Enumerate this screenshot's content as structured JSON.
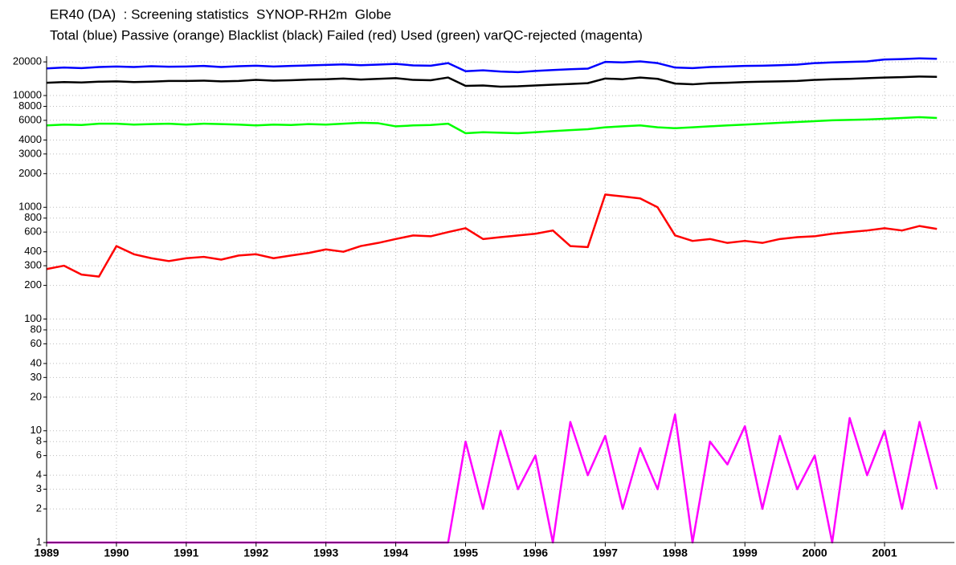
{
  "chart_data": {
    "type": "line",
    "title": "ER40 (DA)  : Screening statistics  SYNOP-RH2m  Globe",
    "subtitle": "Total (blue) Passive (orange) Blacklist (black) Failed (red) Used (green) varQC-rejected (magenta)",
    "yscale": "log",
    "grid": true,
    "xlim": [
      1989,
      2002
    ],
    "xticks": [
      1989,
      1990,
      1991,
      1992,
      1993,
      1994,
      1995,
      1996,
      1997,
      1998,
      1999,
      2000,
      2001
    ],
    "ylim": [
      1,
      22500
    ],
    "yticks": [
      1,
      2,
      3,
      4,
      6,
      8,
      10,
      20,
      30,
      40,
      60,
      80,
      100,
      200,
      300,
      400,
      600,
      800,
      1000,
      2000,
      3000,
      4000,
      6000,
      8000,
      10000,
      20000
    ],
    "x": [
      1989,
      1989.25,
      1989.5,
      1989.75,
      1990,
      1990.25,
      1990.5,
      1990.75,
      1991,
      1991.25,
      1991.5,
      1991.75,
      1992,
      1992.25,
      1992.5,
      1992.75,
      1993,
      1993.25,
      1993.5,
      1993.75,
      1994,
      1994.25,
      1994.5,
      1994.75,
      1995,
      1995.25,
      1995.5,
      1995.75,
      1996,
      1996.25,
      1996.5,
      1996.75,
      1997,
      1997.25,
      1997.5,
      1997.75,
      1998,
      1998.25,
      1998.5,
      1998.75,
      1999,
      1999.25,
      1999.5,
      1999.75,
      2000,
      2000.25,
      2000.5,
      2000.75,
      2001,
      2001.25,
      2001.5,
      2001.75
    ],
    "series": [
      {
        "color": "#ff00ff",
        "values": [
          1,
          1,
          1,
          1,
          1,
          1,
          1,
          1,
          1,
          1,
          1,
          1,
          1,
          1,
          1,
          1,
          1,
          1,
          1,
          1,
          1,
          1,
          1,
          1,
          8,
          2,
          10,
          3,
          6,
          1,
          12,
          4,
          9,
          2,
          7,
          3,
          14,
          1,
          8,
          5,
          11,
          2,
          9,
          3,
          6,
          1,
          13,
          4,
          10,
          2,
          12,
          3
        ]
      },
      {
        "color": "#ff0000",
        "values": [
          280,
          300,
          250,
          240,
          450,
          380,
          350,
          330,
          350,
          360,
          340,
          370,
          380,
          350,
          370,
          390,
          420,
          400,
          450,
          480,
          520,
          560,
          550,
          600,
          650,
          520,
          540,
          560,
          580,
          620,
          450,
          440,
          1300,
          1250,
          1200,
          1000,
          560,
          500,
          520,
          480,
          500,
          480,
          520,
          540,
          550,
          580,
          600,
          620,
          650,
          620,
          680,
          640
        ]
      },
      {
        "color": "#00ff00",
        "values": [
          5400,
          5500,
          5450,
          5600,
          5600,
          5500,
          5550,
          5600,
          5500,
          5600,
          5550,
          5500,
          5400,
          5500,
          5450,
          5550,
          5500,
          5600,
          5700,
          5650,
          5300,
          5400,
          5450,
          5600,
          4600,
          4700,
          4650,
          4600,
          4700,
          4800,
          4900,
          5000,
          5200,
          5300,
          5400,
          5200,
          5100,
          5200,
          5300,
          5400,
          5500,
          5600,
          5700,
          5800,
          5900,
          6000,
          6050,
          6100,
          6200,
          6300,
          6400,
          6300
        ]
      },
      {
        "color": "#000000",
        "values": [
          13000,
          13200,
          13100,
          13300,
          13400,
          13200,
          13300,
          13500,
          13500,
          13600,
          13400,
          13500,
          13800,
          13600,
          13700,
          13900,
          14000,
          14200,
          13900,
          14100,
          14300,
          13800,
          13700,
          14500,
          12200,
          12300,
          12000,
          12100,
          12300,
          12500,
          12700,
          12900,
          14200,
          14000,
          14500,
          14100,
          12800,
          12600,
          12900,
          13000,
          13200,
          13300,
          13400,
          13500,
          13800,
          14000,
          14100,
          14300,
          14500,
          14600,
          14800,
          14700
        ]
      },
      {
        "color": "#0000ff",
        "values": [
          17500,
          17800,
          17600,
          18000,
          18200,
          18000,
          18300,
          18100,
          18200,
          18400,
          18000,
          18300,
          18500,
          18200,
          18400,
          18600,
          18800,
          19000,
          18700,
          18900,
          19200,
          18600,
          18500,
          19500,
          16500,
          16800,
          16400,
          16200,
          16600,
          16900,
          17200,
          17400,
          20000,
          19800,
          20200,
          19500,
          17800,
          17600,
          18000,
          18200,
          18400,
          18500,
          18700,
          18900,
          19500,
          19800,
          20000,
          20200,
          21000,
          21200,
          21500,
          21300
        ]
      }
    ]
  }
}
